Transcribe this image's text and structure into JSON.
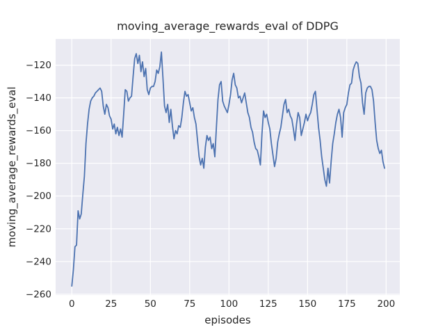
{
  "title": "moving_average_rewards_eval of DDPG",
  "x_axis": {
    "label": "episodes",
    "ticks": [
      0,
      25,
      50,
      75,
      100,
      125,
      150,
      175,
      200
    ]
  },
  "y_axis": {
    "label": "moving_average_rewards_eval",
    "ticks": [
      -260,
      -240,
      -220,
      -200,
      -180,
      -160,
      -140,
      -120
    ]
  },
  "style": {
    "figure_background": "#ffffff",
    "plot_background": "#eaeaf2",
    "grid_color": "#ffffff",
    "line_color": "#4c72b0",
    "text_color": "#262626"
  },
  "chart_data": {
    "type": "line",
    "title": "moving_average_rewards_eval of DDPG",
    "xlabel": "episodes",
    "ylabel": "moving_average_rewards_eval",
    "xlim": [
      -10.3,
      208.7
    ],
    "ylim": [
      -260.5,
      -104.0
    ],
    "xticks": [
      0,
      25,
      50,
      75,
      100,
      125,
      150,
      175,
      200
    ],
    "yticks": [
      -260,
      -240,
      -220,
      -200,
      -180,
      -160,
      -140,
      -120
    ],
    "grid": true,
    "legend": null,
    "series": [
      {
        "name": "moving_average_rewards_eval",
        "color": "#4c72b0",
        "x": [
          0,
          1,
          2,
          3,
          4,
          5,
          6,
          7,
          8,
          9,
          10,
          11,
          12,
          13,
          14,
          15,
          16,
          17,
          18,
          19,
          20,
          21,
          22,
          23,
          24,
          25,
          26,
          27,
          28,
          29,
          30,
          31,
          32,
          33,
          34,
          35,
          36,
          37,
          38,
          39,
          40,
          41,
          42,
          43,
          44,
          45,
          46,
          47,
          48,
          49,
          50,
          51,
          52,
          53,
          54,
          55,
          56,
          57,
          58,
          59,
          60,
          61,
          62,
          63,
          64,
          65,
          66,
          67,
          68,
          69,
          70,
          71,
          72,
          73,
          74,
          75,
          76,
          77,
          78,
          79,
          80,
          81,
          82,
          83,
          84,
          85,
          86,
          87,
          88,
          89,
          90,
          91,
          92,
          93,
          94,
          95,
          96,
          97,
          98,
          99,
          100,
          101,
          102,
          103,
          104,
          105,
          106,
          107,
          108,
          109,
          110,
          111,
          112,
          113,
          114,
          115,
          116,
          117,
          118,
          119,
          120,
          121,
          122,
          123,
          124,
          125,
          126,
          127,
          128,
          129,
          130,
          131,
          132,
          133,
          134,
          135,
          136,
          137,
          138,
          139,
          140,
          141,
          142,
          143,
          144,
          145,
          146,
          147,
          148,
          149,
          150,
          151,
          152,
          153,
          154,
          155,
          156,
          157,
          158,
          159,
          160,
          161,
          162,
          163,
          164,
          165,
          166,
          167,
          168,
          169,
          170,
          171,
          172,
          173,
          174,
          175,
          176,
          177,
          178,
          179,
          180,
          181,
          182,
          183,
          184,
          185,
          186,
          187,
          188,
          189,
          190,
          191,
          192,
          193,
          194,
          195,
          196,
          197,
          198,
          199
        ],
        "y": [
          -255,
          -245,
          -231,
          -230,
          -209,
          -214,
          -211,
          -199,
          -188,
          -168,
          -156,
          -147,
          -142,
          -140,
          -139,
          -137,
          -136,
          -135,
          -134,
          -136,
          -145,
          -150,
          -144,
          -146,
          -151,
          -153,
          -159,
          -156,
          -162,
          -158,
          -163,
          -159,
          -164,
          -150,
          -135,
          -136,
          -142,
          -140,
          -139,
          -127,
          -116,
          -113,
          -119,
          -114,
          -124,
          -118,
          -127,
          -122,
          -135,
          -138,
          -134,
          -133,
          -133,
          -130,
          -123,
          -125,
          -121,
          -112,
          -128,
          -145,
          -149,
          -144,
          -155,
          -147,
          -157,
          -165,
          -160,
          -162,
          -157,
          -158,
          -152,
          -143,
          -136,
          -139,
          -138,
          -143,
          -148,
          -146,
          -152,
          -156,
          -166,
          -176,
          -181,
          -177,
          -183,
          -170,
          -163,
          -166,
          -164,
          -171,
          -168,
          -176,
          -158,
          -141,
          -132,
          -130,
          -142,
          -145,
          -147,
          -149,
          -144,
          -138,
          -129,
          -125,
          -132,
          -134,
          -140,
          -139,
          -143,
          -140,
          -137,
          -143,
          -149,
          -152,
          -158,
          -161,
          -167,
          -171,
          -172,
          -176,
          -181,
          -162,
          -148,
          -152,
          -150,
          -155,
          -159,
          -168,
          -175,
          -182,
          -177,
          -167,
          -162,
          -158,
          -151,
          -144,
          -141,
          -149,
          -147,
          -151,
          -153,
          -159,
          -166,
          -156,
          -149,
          -152,
          -163,
          -159,
          -155,
          -150,
          -154,
          -151,
          -149,
          -144,
          -138,
          -136,
          -147,
          -158,
          -166,
          -176,
          -183,
          -190,
          -194,
          -183,
          -192,
          -179,
          -168,
          -162,
          -155,
          -150,
          -147,
          -152,
          -164,
          -149,
          -146,
          -144,
          -137,
          -132,
          -131,
          -123,
          -120,
          -118,
          -119,
          -127,
          -131,
          -143,
          -150,
          -137,
          -134,
          -133,
          -133,
          -135,
          -142,
          -155,
          -166,
          -171,
          -174,
          -172,
          -179,
          -183
        ]
      }
    ]
  }
}
